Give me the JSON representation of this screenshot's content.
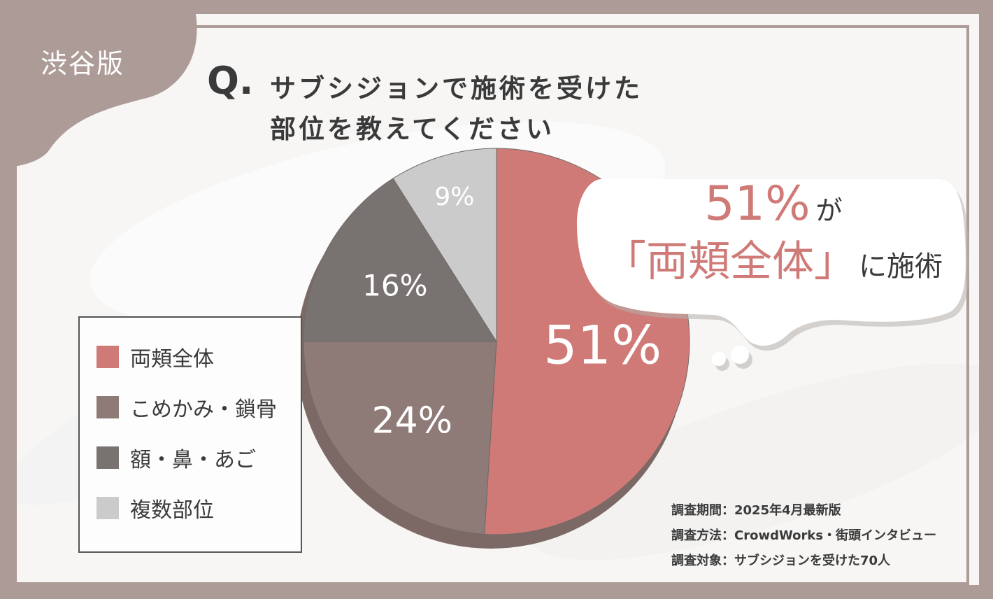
{
  "region_tag": "渋谷版",
  "question": {
    "mark": "Q.",
    "line1": "サブシジョンで施術を受けた",
    "line2": "部位を教えてください"
  },
  "chart_data": {
    "type": "pie",
    "title": "",
    "categories": [
      "両頬全体",
      "こめかみ・鎖骨",
      "額・鼻・あご",
      "複数部位"
    ],
    "values": [
      51,
      24,
      16,
      9
    ],
    "labels": [
      "51%",
      "24%",
      "16%",
      "9%"
    ],
    "colors": [
      "#cf7a76",
      "#8e7a77",
      "#787371",
      "#cbcbcb"
    ],
    "start": "12 o'clock",
    "direction": "clockwise",
    "legend": "left",
    "style": "3d-tilted"
  },
  "legend": [
    {
      "label": "両頬全体"
    },
    {
      "label": "こめかみ・鎖骨"
    },
    {
      "label": "額・鼻・あご"
    },
    {
      "label": "複数部位"
    }
  ],
  "callout": {
    "percent": "51%",
    "connector": "が",
    "highlight": "「両頬全体」",
    "suffix": "に施術"
  },
  "survey": {
    "period": "調査期間：2025年4月最新版",
    "method": "調査方法：CrowdWorks・街頭インタビュー",
    "target": "調査対象：サブシジョンを受けた70人"
  },
  "theme": {
    "frame": "#ad9b97",
    "background": "#f7f6f5",
    "text": "#3a3a3a",
    "accent": "#cf7a76",
    "pie_edge": "#7c6965"
  }
}
